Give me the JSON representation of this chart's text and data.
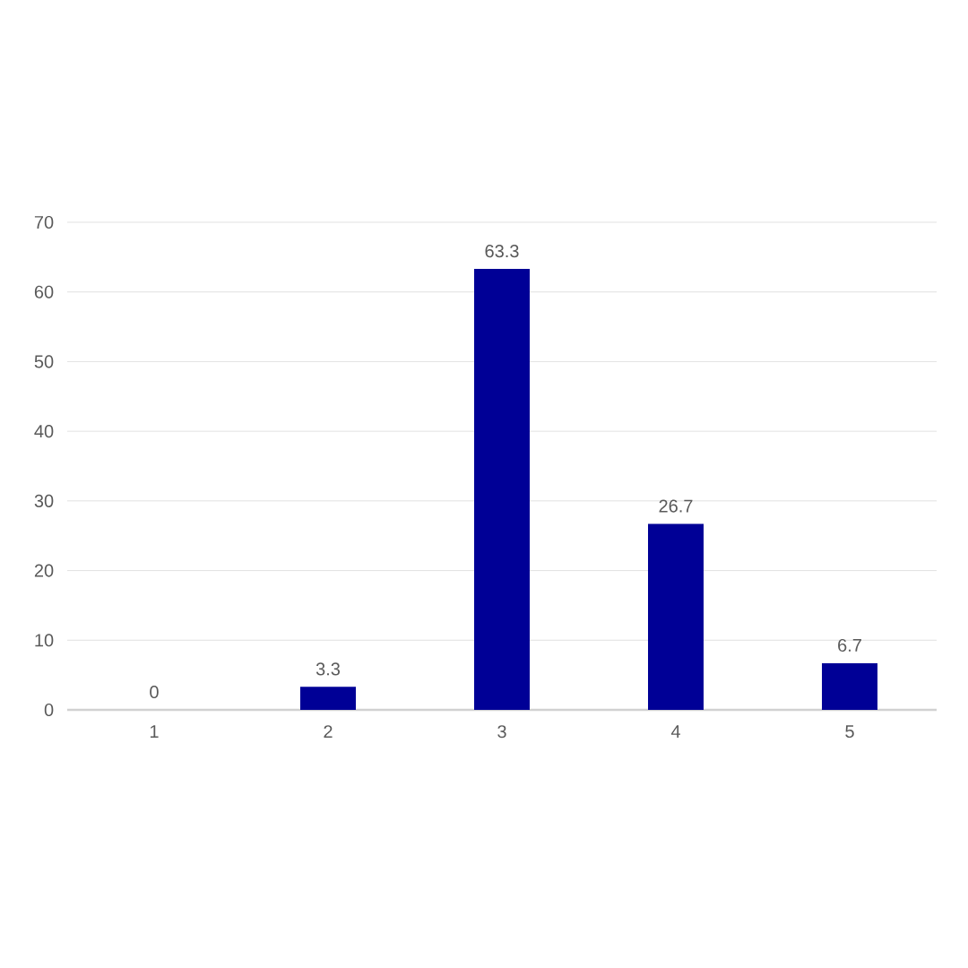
{
  "chart_data": {
    "type": "bar",
    "categories": [
      "1",
      "2",
      "3",
      "4",
      "5"
    ],
    "values": [
      0,
      3.3,
      63.3,
      26.7,
      6.7
    ],
    "color": "#000096",
    "ylim": [
      0,
      70
    ],
    "yticks": [
      0,
      10,
      20,
      30,
      40,
      50,
      60,
      70
    ],
    "grid": "y",
    "data_labels": true
  }
}
